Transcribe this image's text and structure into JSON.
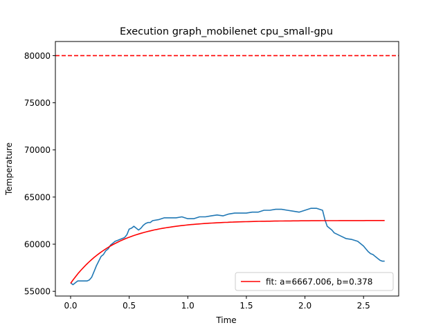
{
  "chart_data": {
    "type": "line",
    "title": "Execution graph_mobilenet cpu_small-gpu",
    "xlabel": "Time",
    "ylabel": "Temperature",
    "xlim": [
      -0.13,
      2.8
    ],
    "ylim": [
      54500,
      81500
    ],
    "xticks": [
      0.0,
      0.5,
      1.0,
      1.5,
      2.0,
      2.5
    ],
    "xtick_labels": [
      "0.0",
      "0.5",
      "1.0",
      "1.5",
      "2.0",
      "2.5"
    ],
    "yticks": [
      55000,
      60000,
      65000,
      70000,
      75000,
      80000
    ],
    "ytick_labels": [
      "55000",
      "60000",
      "65000",
      "70000",
      "75000",
      "80000"
    ],
    "grid": false,
    "legend_position": "lower-right",
    "colors": {
      "measured": "#1f77b4",
      "fit": "#ff0000",
      "threshold": "#ff0000"
    },
    "threshold": {
      "y": 80000,
      "style": "dashed"
    },
    "series": [
      {
        "style": "solid",
        "color": "#1f77b4",
        "x": [
          0.0,
          0.02,
          0.04,
          0.06,
          0.08,
          0.1,
          0.12,
          0.14,
          0.16,
          0.18,
          0.2,
          0.22,
          0.24,
          0.26,
          0.28,
          0.3,
          0.32,
          0.34,
          0.36,
          0.38,
          0.4,
          0.42,
          0.44,
          0.46,
          0.48,
          0.5,
          0.52,
          0.54,
          0.56,
          0.58,
          0.6,
          0.62,
          0.64,
          0.66,
          0.68,
          0.7,
          0.75,
          0.8,
          0.85,
          0.9,
          0.95,
          1.0,
          1.05,
          1.1,
          1.15,
          1.2,
          1.25,
          1.3,
          1.35,
          1.4,
          1.45,
          1.5,
          1.55,
          1.6,
          1.65,
          1.7,
          1.75,
          1.8,
          1.85,
          1.9,
          1.95,
          2.0,
          2.05,
          2.1,
          2.15,
          2.17,
          2.19,
          2.21,
          2.23,
          2.25,
          2.3,
          2.35,
          2.4,
          2.45,
          2.5,
          2.52,
          2.54,
          2.56,
          2.58,
          2.6,
          2.62,
          2.64,
          2.66,
          2.68
        ],
        "y": [
          55900,
          55700,
          55900,
          56100,
          56100,
          56100,
          56100,
          56100,
          56200,
          56500,
          57100,
          57700,
          58200,
          58700,
          58900,
          59300,
          59500,
          59900,
          60100,
          60300,
          60400,
          60500,
          60600,
          60700,
          61000,
          61600,
          61700,
          61900,
          61700,
          61500,
          61700,
          62000,
          62200,
          62300,
          62300,
          62500,
          62600,
          62800,
          62800,
          62800,
          62900,
          62700,
          62700,
          62900,
          62900,
          63000,
          63100,
          63000,
          63200,
          63300,
          63300,
          63300,
          63400,
          63400,
          63600,
          63600,
          63700,
          63700,
          63600,
          63500,
          63400,
          63600,
          63800,
          63800,
          63600,
          62600,
          61900,
          61700,
          61500,
          61200,
          60900,
          60600,
          60500,
          60300,
          59800,
          59500,
          59200,
          59000,
          58900,
          58700,
          58500,
          58300,
          58200,
          58200
        ]
      },
      {
        "name": "fit: a=6667.006, b=0.378",
        "style": "solid",
        "color": "#ff0000",
        "model": {
          "a": 6667.006,
          "b": 0.378,
          "y0": 55850
        },
        "x_range": [
          0.0,
          2.68
        ]
      }
    ]
  }
}
